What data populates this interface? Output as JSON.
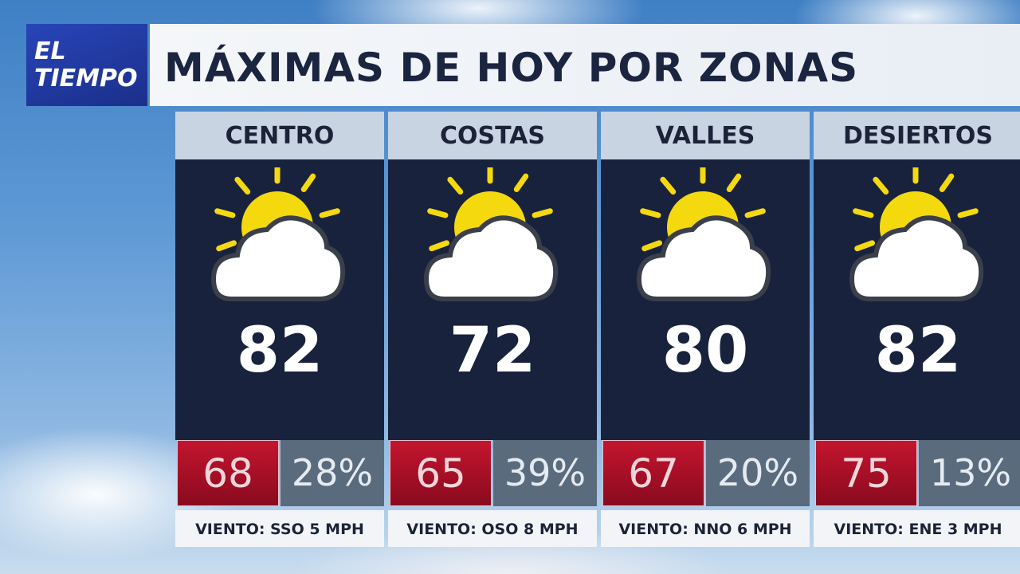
{
  "logo": {
    "line1": "EL",
    "line2": "TIEMPO"
  },
  "title": "MÁXIMAS DE HOY POR ZONAS",
  "zones": [
    {
      "name": "CENTRO",
      "high": "82",
      "low": "68",
      "humidity": "28%",
      "wind": "VIENTO: SSO 5 MPH"
    },
    {
      "name": "COSTAS",
      "high": "72",
      "low": "65",
      "humidity": "39%",
      "wind": "VIENTO: OSO 8 MPH"
    },
    {
      "name": "VALLES",
      "high": "80",
      "low": "67",
      "humidity": "20%",
      "wind": "VIENTO: NNO 6 MPH"
    },
    {
      "name": "DESIERTOS",
      "high": "82",
      "low": "75",
      "humidity": "13%",
      "wind": "VIENTO: ENE 3 MPH"
    }
  ]
}
